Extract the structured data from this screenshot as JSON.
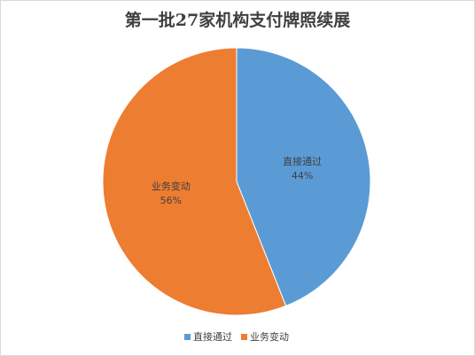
{
  "chart_data": {
    "type": "pie",
    "title": "第一批27家机构支付牌照续展",
    "categories": [
      "直接通过",
      "业务变动"
    ],
    "values": [
      44,
      56
    ],
    "value_labels": [
      "44%",
      "56%"
    ],
    "colors": [
      "#5b9bd5",
      "#ed7d31"
    ],
    "legend": "bottom"
  }
}
